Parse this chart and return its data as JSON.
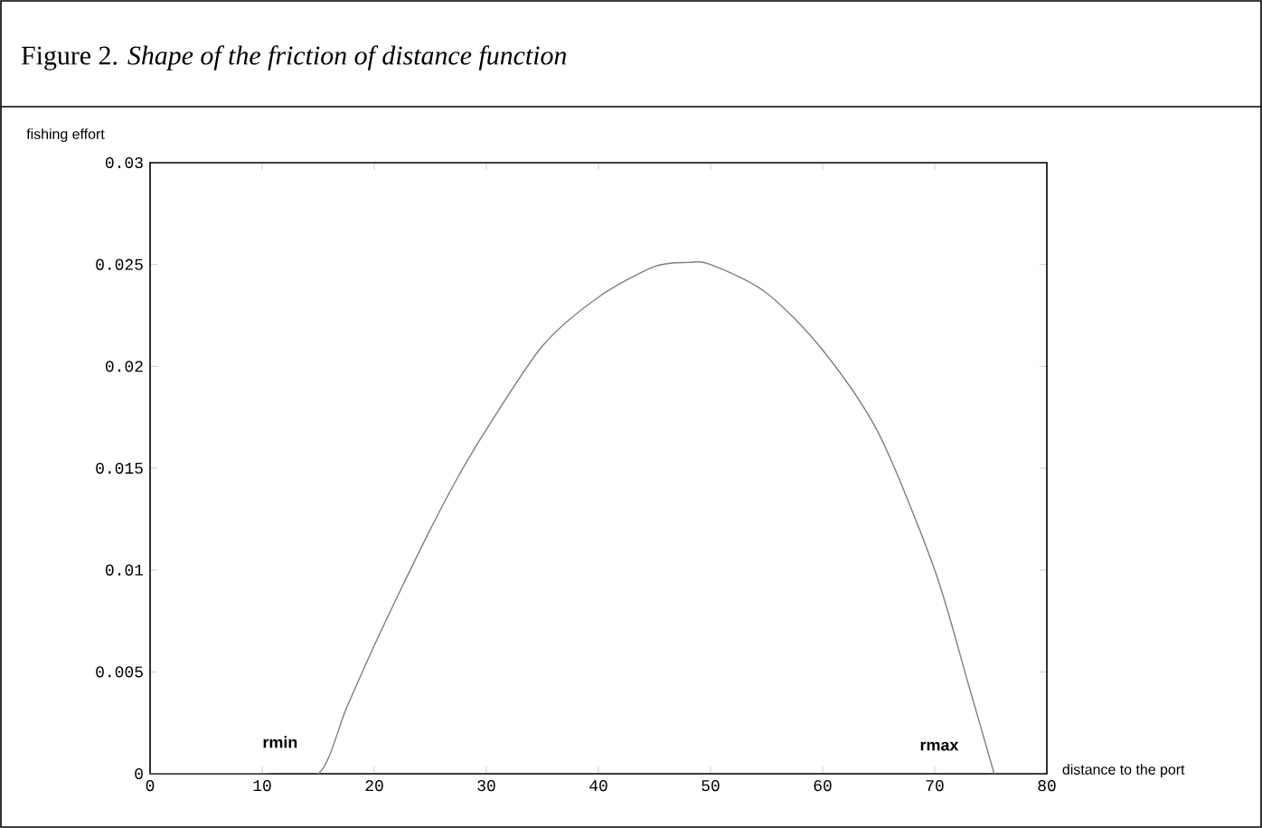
{
  "chart_data": {
    "type": "line",
    "title": "Figure 2. *Shape of the friction of distance function*",
    "xlabel": "distance to the port",
    "ylabel": "fishing effort",
    "x": [
      0,
      10,
      15,
      17.5,
      20,
      22.5,
      25,
      27.5,
      30,
      35,
      40,
      45,
      48,
      50,
      55,
      60,
      65,
      70,
      73,
      75.3
    ],
    "series": [
      {
        "color": "#7f7f7f",
        "values": [
          0,
          0,
          0,
          0.0032,
          0.0063,
          0.0092,
          0.012,
          0.0146,
          0.0169,
          0.021,
          0.0234,
          0.0249,
          0.0251,
          0.025,
          0.0236,
          0.0208,
          0.0167,
          0.01,
          0.0044,
          0
        ]
      }
    ],
    "xlim": [
      0,
      80
    ],
    "ylim": [
      0,
      0.03
    ],
    "xticks": [
      0,
      10,
      20,
      30,
      40,
      50,
      60,
      70,
      80
    ],
    "yticks": [
      0,
      0.005,
      0.01,
      0.015,
      0.02,
      0.025,
      0.03
    ],
    "annotations": [
      "rmin",
      "rmax"
    ],
    "grid": false,
    "marker": "none",
    "line_style": "solid"
  }
}
